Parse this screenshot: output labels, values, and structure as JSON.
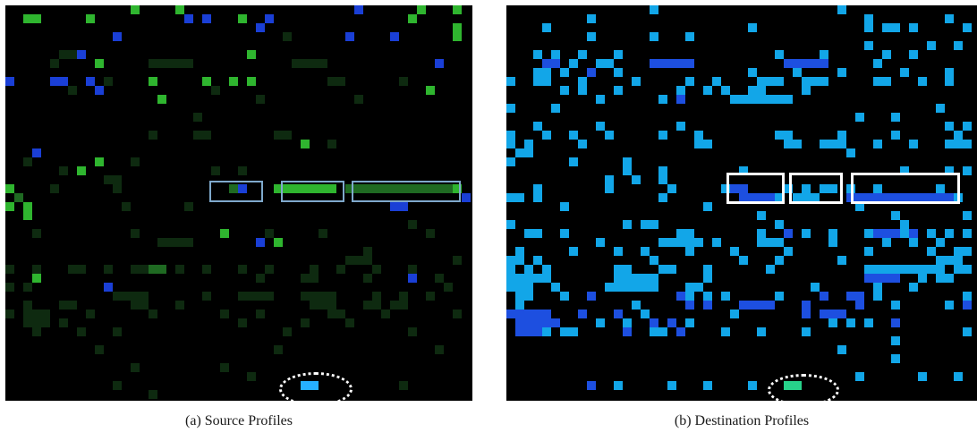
{
  "figure": {
    "panels": [
      {
        "id": "a",
        "caption": "(a)  Source Profiles",
        "palette": {
          "background": "#000000",
          "dim_green": "#0e2a10",
          "mid_green": "#1f6a22",
          "bright_green": "#2fb52f",
          "blue": "#1a3fd6",
          "box_border": "#7fa9cc",
          "highlight_cyan": "#26b0ff"
        }
      },
      {
        "id": "b",
        "caption": "(b)  Destination Profiles",
        "palette": {
          "background": "#000000",
          "light_blue": "#12a6e8",
          "deep_blue": "#1d4fe0",
          "box_border": "#ffffff",
          "highlight_green": "#27d28a"
        }
      }
    ]
  }
}
